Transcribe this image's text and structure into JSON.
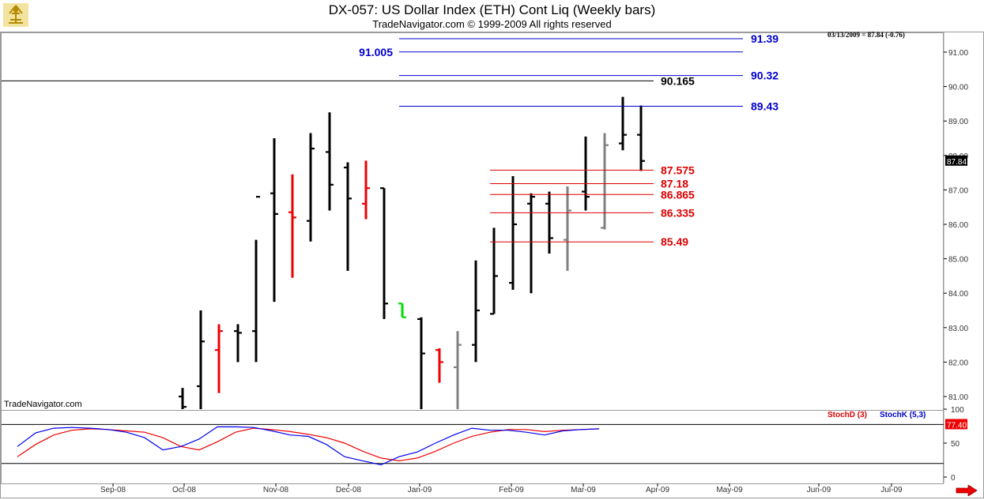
{
  "header": {
    "title": "DX-057:  US Dollar Index (ETH) Cont Liq  (Weekly bars)",
    "copyright": "TradeNavigator.com © 1999-2009 All rights reserved"
  },
  "last_quote": "03/13/2009 = 87.84 (-0.76)",
  "watermark": "TradeNavigator.com",
  "price_tag": "87.84",
  "stoch_tag": "77.40",
  "stoch_legend": {
    "d": "StochD (3)",
    "k": "StochK (5,3)"
  },
  "colors": {
    "up": "#000000",
    "down": "#ee0000",
    "inside": "#808080",
    "green": "#00dd00",
    "fib_blue": "#0000cc",
    "fib_red": "#dd0000",
    "stochK": "#0000ee",
    "stochD": "#ee0000"
  },
  "chart_data": [
    {
      "type": "ohlc",
      "title": "DX-057:  US Dollar Index (ETH) Cont Liq  (Weekly bars)",
      "y_ticks": [
        "81.00",
        "82.00",
        "83.00",
        "84.00",
        "85.00",
        "86.00",
        "87.00",
        "88.00",
        "89.00",
        "90.00",
        "91.00"
      ],
      "ylim": [
        80.6,
        91.9
      ],
      "x_ticks": [
        "Sep-08",
        "Oct-08",
        "Nov-08",
        "Dec-08",
        "Jan-09",
        "Feb-09",
        "Mar-09",
        "Apr-09",
        "May-09",
        "Jun-09",
        "Jul-09"
      ],
      "bars": [
        {
          "c": "up",
          "h": 81.25,
          "l": 80.6,
          "o": 81.0,
          "cl": 80.7
        },
        {
          "c": "up",
          "h": 83.5,
          "l": 80.6,
          "o": 81.3,
          "cl": 82.6
        },
        {
          "c": "down",
          "h": 83.1,
          "l": 81.1,
          "o": 82.35,
          "cl": 82.9
        },
        {
          "c": "up",
          "h": 83.1,
          "l": 82.0,
          "o": 82.9,
          "cl": 82.85
        },
        {
          "c": "up",
          "h": 85.55,
          "l": 82.0,
          "o": 82.9,
          "cl": 86.8
        },
        {
          "c": "up",
          "h": 88.5,
          "l": 83.75,
          "o": 86.9,
          "cl": 86.3
        },
        {
          "c": "down",
          "h": 87.45,
          "l": 84.45,
          "o": 86.35,
          "cl": 86.2
        },
        {
          "c": "up",
          "h": 88.65,
          "l": 85.5,
          "o": 86.1,
          "cl": 88.2
        },
        {
          "c": "up",
          "h": 89.25,
          "l": 86.4,
          "o": 88.1,
          "cl": 87.15
        },
        {
          "c": "up",
          "h": 87.8,
          "l": 84.65,
          "o": 87.65,
          "cl": 86.75
        },
        {
          "c": "down",
          "h": 87.85,
          "l": 86.15,
          "o": 86.6,
          "cl": 87.05
        },
        {
          "c": "up",
          "h": 87.05,
          "l": 83.25,
          "o": 87.05,
          "cl": 83.7
        },
        {
          "c": "green",
          "h": 83.7,
          "l": 83.3,
          "o": 83.7,
          "cl": 83.3
        },
        {
          "c": "up",
          "h": 83.3,
          "l": 80.6,
          "o": 83.25,
          "cl": 82.25
        },
        {
          "c": "down",
          "h": 82.4,
          "l": 81.4,
          "o": 82.35,
          "cl": 82.0
        },
        {
          "c": "inside",
          "h": 82.9,
          "l": 80.6,
          "o": 81.85,
          "cl": 82.5
        },
        {
          "c": "up",
          "h": 84.95,
          "l": 82.0,
          "o": 82.5,
          "cl": 83.5
        },
        {
          "c": "up",
          "h": 85.9,
          "l": 83.4,
          "o": 83.4,
          "cl": 84.5
        },
        {
          "c": "up",
          "h": 87.4,
          "l": 84.1,
          "o": 84.3,
          "cl": 86.0
        },
        {
          "c": "up",
          "h": 86.9,
          "l": 84.0,
          "o": 86.6,
          "cl": 86.8
        },
        {
          "c": "up",
          "h": 86.95,
          "l": 85.15,
          "o": 86.6,
          "cl": 85.6
        },
        {
          "c": "inside",
          "h": 87.1,
          "l": 84.65,
          "o": 85.55,
          "cl": 86.4
        },
        {
          "c": "up",
          "h": 88.55,
          "l": 86.4,
          "o": 86.95,
          "cl": 86.8
        },
        {
          "c": "inside",
          "h": 88.65,
          "l": 85.85,
          "o": 85.9,
          "cl": 88.3
        },
        {
          "c": "up",
          "h": 89.7,
          "l": 88.15,
          "o": 88.35,
          "cl": 88.6
        },
        {
          "c": "up",
          "h": 89.45,
          "l": 87.55,
          "o": 88.6,
          "cl": 87.84
        }
      ],
      "levels": [
        {
          "label": "91.39",
          "value": 91.39,
          "color": "blue",
          "label_side": "right"
        },
        {
          "label": "91.005",
          "value": 91.005,
          "color": "blue",
          "label_side": "left"
        },
        {
          "label": "90.32",
          "value": 90.32,
          "color": "blue",
          "label_side": "right"
        },
        {
          "label": "90.165",
          "value": 90.165,
          "color": "black",
          "label_side": "right"
        },
        {
          "label": "89.43",
          "value": 89.43,
          "color": "blue",
          "label_side": "right"
        },
        {
          "label": "87.575",
          "value": 87.575,
          "color": "red",
          "label_side": "right"
        },
        {
          "label": "87.18",
          "value": 87.18,
          "color": "red",
          "label_side": "right"
        },
        {
          "label": "86.865",
          "value": 86.865,
          "color": "red",
          "label_side": "right"
        },
        {
          "label": "86.335",
          "value": 86.335,
          "color": "red",
          "label_side": "right"
        },
        {
          "label": "85.49",
          "value": 85.49,
          "color": "red",
          "label_side": "right"
        }
      ]
    },
    {
      "type": "line",
      "y_ticks": [
        "0",
        "50",
        "100"
      ],
      "ylim": [
        -5,
        110
      ],
      "series": [
        {
          "name": "StochD (3)",
          "color": "red",
          "values": [
            30,
            48,
            62,
            69,
            71,
            70,
            68,
            66,
            58,
            45,
            40,
            52,
            66,
            72,
            70,
            67,
            63,
            58,
            50,
            38,
            28,
            24,
            28,
            38,
            50,
            60,
            66,
            70,
            70,
            67,
            69,
            70,
            71
          ]
        },
        {
          "name": "StochK (5,3)",
          "color": "blue",
          "values": [
            45,
            65,
            72,
            73,
            72,
            70,
            66,
            58,
            40,
            45,
            56,
            74,
            74,
            73,
            68,
            62,
            60,
            48,
            30,
            24,
            18,
            30,
            37,
            50,
            62,
            72,
            69,
            69,
            66,
            62,
            68,
            70,
            71
          ]
        }
      ],
      "mid_line": 77.4
    }
  ]
}
